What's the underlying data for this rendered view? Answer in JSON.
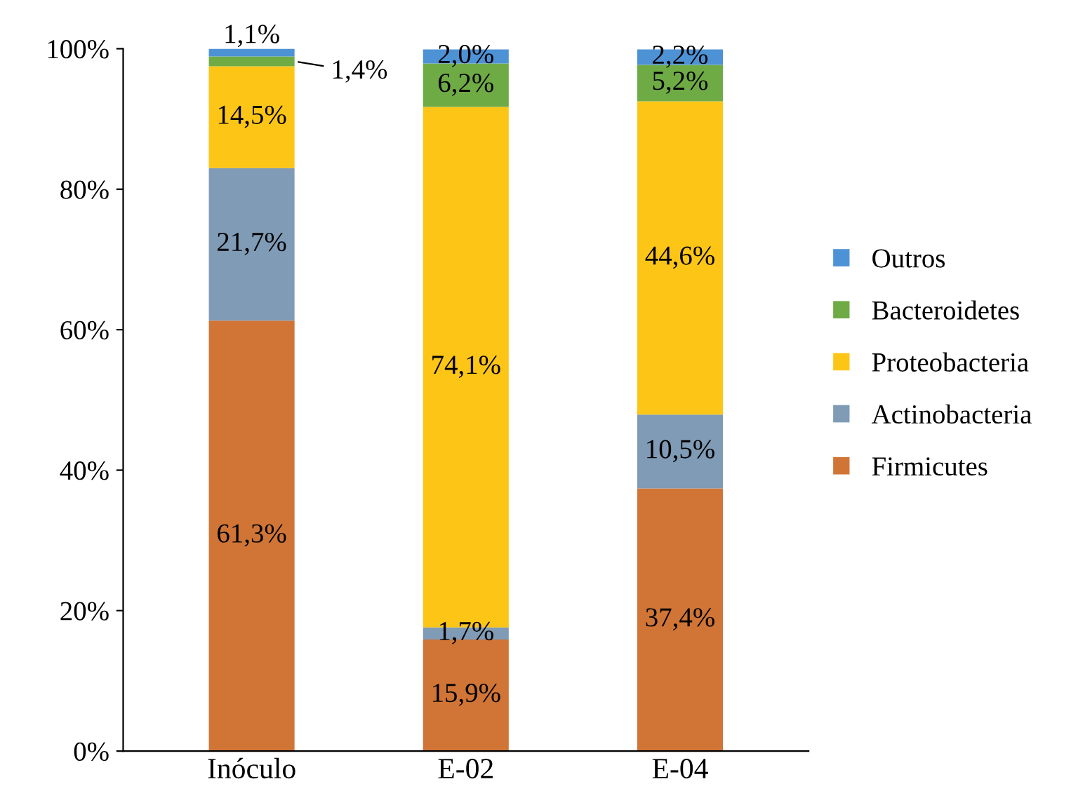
{
  "chart_data": {
    "type": "bar",
    "stacked": true,
    "categories": [
      "Inóculo",
      "E-02",
      "E-04"
    ],
    "series": [
      {
        "name": "Firmicutes",
        "color": "#d07536",
        "values": [
          61.3,
          15.9,
          37.4
        ],
        "value_labels": [
          "61,3%",
          "15,9%",
          "37,4%"
        ]
      },
      {
        "name": "Actinobacteria",
        "color": "#7f9bb5",
        "values": [
          21.7,
          1.7,
          10.5
        ],
        "value_labels": [
          "21,7%",
          "1,7%",
          "10,5%"
        ]
      },
      {
        "name": "Proteobacteria",
        "color": "#fdc516",
        "values": [
          14.5,
          74.1,
          44.6
        ],
        "value_labels": [
          "14,5%",
          "74,1%",
          "44,6%"
        ]
      },
      {
        "name": "Bacteroidetes",
        "color": "#6fab45",
        "values": [
          1.4,
          6.2,
          5.2
        ],
        "value_labels": [
          "1,4%",
          "6,2%",
          "5,2%"
        ]
      },
      {
        "name": "Outros",
        "color": "#4e92d6",
        "values": [
          1.1,
          2.0,
          2.2
        ],
        "value_labels": [
          "1,1%",
          "2,0%",
          "2,2%"
        ]
      }
    ],
    "ylim": [
      0,
      100
    ],
    "yticks": [
      {
        "value": 0,
        "label": "0%"
      },
      {
        "value": 20,
        "label": "20%"
      },
      {
        "value": 40,
        "label": "40%"
      },
      {
        "value": 60,
        "label": "60%"
      },
      {
        "value": 80,
        "label": "80%"
      },
      {
        "value": 100,
        "label": "100%"
      }
    ],
    "grid": false,
    "legend": "right"
  }
}
